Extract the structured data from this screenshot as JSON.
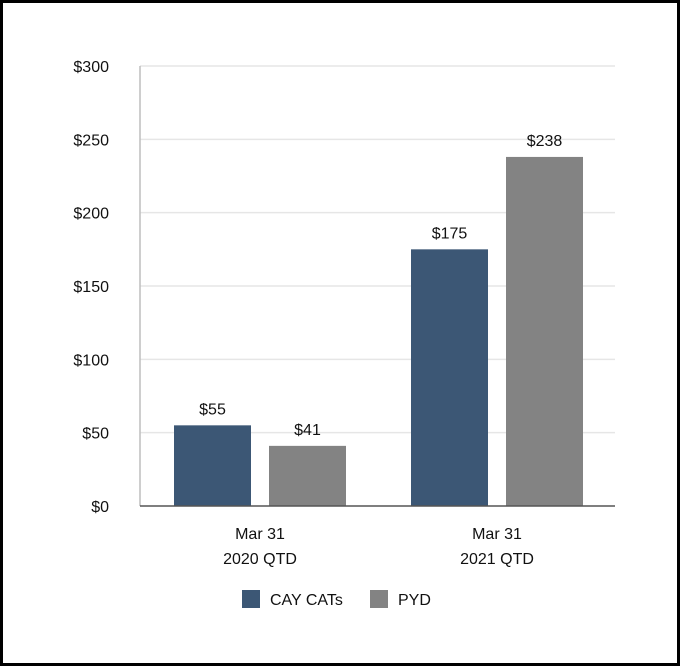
{
  "chart_data": {
    "type": "bar",
    "title": "",
    "xlabel": "",
    "ylabel": "",
    "ylim": [
      0,
      300
    ],
    "yticks": [
      0,
      50,
      100,
      150,
      200,
      250,
      300
    ],
    "ytick_labels": [
      "$0",
      "$50",
      "$100",
      "$150",
      "$200",
      "$250",
      "$300"
    ],
    "categories": [
      [
        "Mar 31",
        "2020 QTD"
      ],
      [
        "Mar 31",
        "2021 QTD"
      ]
    ],
    "series": [
      {
        "name": "CAY CATs",
        "color": "#3c5775",
        "values": [
          55,
          175
        ],
        "labels": [
          "$55",
          "$175"
        ]
      },
      {
        "name": "PYD",
        "color": "#838383",
        "values": [
          41,
          238
        ],
        "labels": [
          "$41",
          "$238"
        ]
      }
    ],
    "grid": true,
    "legend": "bottom-center"
  }
}
